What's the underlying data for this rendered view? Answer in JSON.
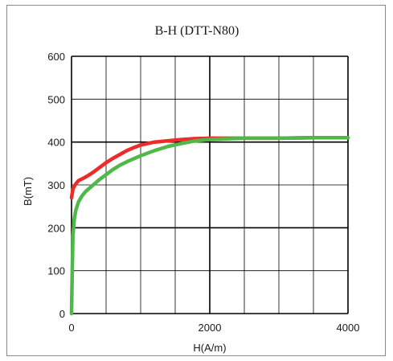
{
  "chart_data": {
    "type": "line",
    "title": "B-H (DTT-N80)",
    "xlabel": "H(A/m)",
    "ylabel": "B(mT)",
    "xlim": [
      0,
      4000
    ],
    "ylim": [
      0,
      600
    ],
    "x_ticks": [
      0,
      2000,
      4000
    ],
    "x_tick_labels": [
      "0",
      "2000",
      "4000"
    ],
    "y_ticks": [
      0,
      100,
      200,
      300,
      400,
      500,
      600
    ],
    "y_tick_labels": [
      "0",
      "100",
      "200",
      "300",
      "400",
      "500",
      "600"
    ],
    "grid": true,
    "legend": "none",
    "series": [
      {
        "color": "#ee2b2b",
        "x": [
          0,
          20,
          50,
          100,
          200,
          300,
          400,
          500,
          600,
          700,
          800,
          900,
          1000,
          1200,
          1400,
          1600,
          1800,
          2000,
          2500,
          3000,
          3500,
          4000
        ],
        "y": [
          270,
          290,
          300,
          310,
          318,
          328,
          340,
          352,
          362,
          371,
          380,
          387,
          393,
          400,
          403,
          406,
          408,
          409,
          409,
          409,
          410,
          410
        ]
      },
      {
        "color": "#4fb848",
        "x": [
          0,
          10,
          20,
          40,
          60,
          100,
          150,
          200,
          300,
          400,
          500,
          600,
          700,
          800,
          1000,
          1200,
          1400,
          1600,
          1800,
          2000,
          2500,
          3000,
          3500,
          4000
        ],
        "y": [
          0,
          100,
          180,
          220,
          240,
          260,
          274,
          284,
          298,
          312,
          324,
          336,
          346,
          354,
          368,
          380,
          390,
          397,
          403,
          406,
          409,
          409,
          410,
          410
        ]
      }
    ]
  }
}
